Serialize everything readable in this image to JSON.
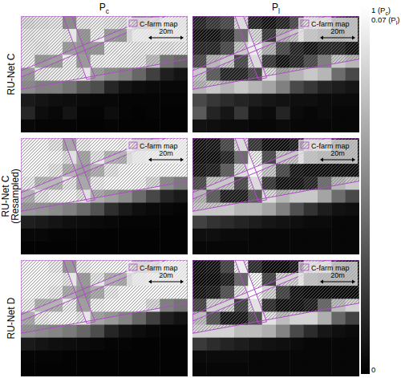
{
  "chart_data": {
    "type": "heatmap",
    "columns": [
      "Pc",
      "Pl"
    ],
    "color_ranges": [
      [
        0,
        1
      ],
      [
        0,
        0.07
      ]
    ],
    "colorbar_ticks": [
      [
        {
          "value": 1,
          "label": "1 (Pc)"
        },
        {
          "value": 0,
          "label": "0"
        }
      ],
      [
        {
          "value": 0.07,
          "label": "0.07 (Pl)"
        }
      ]
    ],
    "overlay_label": "C-farm map",
    "scale_bar_label": "20m",
    "rows": [
      {
        "label": [
          "RU-Net C"
        ],
        "panels": [
          [
            [
              0.85,
              0.88,
              0.9,
              0.55,
              0.9,
              0.92,
              0.9,
              0.88,
              0.6,
              0.65,
              0.9,
              0.88
            ],
            [
              0.9,
              0.92,
              0.93,
              0.9,
              0.6,
              0.93,
              0.62,
              0.6,
              0.92,
              0.9,
              0.93,
              0.9
            ],
            [
              0.92,
              0.9,
              0.93,
              0.62,
              0.58,
              0.6,
              0.93,
              0.94,
              0.92,
              0.93,
              0.9,
              0.92
            ],
            [
              0.93,
              0.6,
              0.62,
              0.92,
              0.6,
              0.93,
              0.94,
              0.92,
              0.9,
              0.75,
              0.45,
              0.4
            ],
            [
              0.6,
              0.9,
              0.92,
              0.93,
              0.9,
              0.62,
              0.55,
              0.5,
              0.4,
              0.25,
              0.12,
              0.08
            ],
            [
              0.55,
              0.5,
              0.5,
              0.45,
              0.35,
              0.3,
              0.15,
              0.08,
              0.05,
              0.04,
              0.03,
              0.03
            ],
            [
              0.1,
              0.08,
              0.06,
              0.05,
              0.04,
              0.03,
              0.03,
              0.02,
              0.02,
              0.02,
              0.02,
              0.02
            ],
            [
              0.15,
              0.05,
              0.03,
              0.08,
              0.02,
              0.02,
              0.05,
              0.02,
              0.01,
              0.02,
              0.01,
              0.01
            ],
            [
              0.03,
              0.02,
              0.02,
              0.02,
              0.01,
              0.01,
              0.02,
              0.01,
              0.01,
              0.01,
              0.01,
              0.01
            ]
          ],
          [
            [
              0.01,
              0.015,
              0.02,
              0.06,
              0.01,
              0.005,
              0.01,
              0.02,
              0.055,
              0.05,
              0.015,
              0.01
            ],
            [
              0.005,
              0.005,
              0.01,
              0.03,
              0.06,
              0.015,
              0.05,
              0.055,
              0.02,
              0.01,
              0.005,
              0.01
            ],
            [
              0.01,
              0.01,
              0.02,
              0.055,
              0.065,
              0.05,
              0.02,
              0.01,
              0.005,
              0.01,
              0.01,
              0.005
            ],
            [
              0.02,
              0.05,
              0.055,
              0.02,
              0.06,
              0.015,
              0.005,
              0.01,
              0.02,
              0.035,
              0.055,
              0.05
            ],
            [
              0.055,
              0.025,
              0.01,
              0.01,
              0.02,
              0.06,
              0.045,
              0.05,
              0.055,
              0.05,
              0.03,
              0.02
            ],
            [
              0.05,
              0.055,
              0.05,
              0.055,
              0.05,
              0.045,
              0.035,
              0.02,
              0.015,
              0.01,
              0.008,
              0.006
            ],
            [
              0.02,
              0.015,
              0.012,
              0.01,
              0.008,
              0.006,
              0.005,
              0.004,
              0.004,
              0.003,
              0.003,
              0.003
            ],
            [
              0.025,
              0.01,
              0.006,
              0.015,
              0.004,
              0.003,
              0.01,
              0.003,
              0.002,
              0.003,
              0.002,
              0.002
            ],
            [
              0.005,
              0.004,
              0.003,
              0.003,
              0.002,
              0.002,
              0.003,
              0.002,
              0.002,
              0.002,
              0.002,
              0.002
            ]
          ]
        ]
      },
      {
        "label": [
          "RU-Net C",
          "(Resampled)"
        ],
        "panels": [
          [
            [
              0.95,
              0.96,
              0.9,
              0.65,
              0.92,
              0.97,
              0.97,
              0.95,
              0.7,
              0.72,
              0.95,
              0.97
            ],
            [
              0.97,
              0.97,
              0.96,
              0.88,
              0.66,
              0.9,
              0.72,
              0.7,
              0.9,
              0.96,
              0.97,
              0.97
            ],
            [
              0.97,
              0.96,
              0.9,
              0.7,
              0.62,
              0.7,
              0.9,
              0.96,
              0.97,
              0.97,
              0.97,
              0.97
            ],
            [
              0.92,
              0.72,
              0.72,
              0.9,
              0.66,
              0.93,
              0.97,
              0.97,
              0.95,
              0.85,
              0.55,
              0.48
            ],
            [
              0.7,
              0.9,
              0.95,
              0.96,
              0.88,
              0.68,
              0.62,
              0.55,
              0.42,
              0.28,
              0.15,
              0.1
            ],
            [
              0.6,
              0.58,
              0.55,
              0.5,
              0.42,
              0.32,
              0.18,
              0.1,
              0.06,
              0.04,
              0.03,
              0.02
            ],
            [
              0.12,
              0.1,
              0.08,
              0.06,
              0.05,
              0.04,
              0.03,
              0.02,
              0.02,
              0.02,
              0.01,
              0.01
            ],
            [
              0.03,
              0.03,
              0.02,
              0.02,
              0.02,
              0.01,
              0.01,
              0.01,
              0.01,
              0.01,
              0.01,
              0.01
            ],
            [
              0.01,
              0.01,
              0.01,
              0.01,
              0.01,
              0.01,
              0.01,
              0.01,
              0.01,
              0.01,
              0.01,
              0.01
            ]
          ],
          [
            [
              0.005,
              0.006,
              0.02,
              0.06,
              0.015,
              0.004,
              0.004,
              0.008,
              0.05,
              0.05,
              0.008,
              0.004
            ],
            [
              0.004,
              0.004,
              0.01,
              0.03,
              0.065,
              0.02,
              0.055,
              0.055,
              0.015,
              0.006,
              0.004,
              0.004
            ],
            [
              0.006,
              0.008,
              0.025,
              0.06,
              0.068,
              0.055,
              0.02,
              0.006,
              0.004,
              0.004,
              0.004,
              0.004
            ],
            [
              0.02,
              0.055,
              0.055,
              0.02,
              0.06,
              0.015,
              0.005,
              0.005,
              0.01,
              0.03,
              0.05,
              0.055
            ],
            [
              0.05,
              0.025,
              0.008,
              0.008,
              0.025,
              0.06,
              0.05,
              0.055,
              0.055,
              0.045,
              0.03,
              0.02
            ],
            [
              0.055,
              0.055,
              0.055,
              0.05,
              0.05,
              0.045,
              0.035,
              0.022,
              0.014,
              0.008,
              0.005,
              0.004
            ],
            [
              0.018,
              0.014,
              0.012,
              0.01,
              0.008,
              0.006,
              0.005,
              0.004,
              0.003,
              0.003,
              0.002,
              0.002
            ],
            [
              0.004,
              0.004,
              0.003,
              0.003,
              0.002,
              0.002,
              0.002,
              0.002,
              0.002,
              0.002,
              0.002,
              0.002
            ],
            [
              0.002,
              0.002,
              0.002,
              0.002,
              0.002,
              0.002,
              0.002,
              0.002,
              0.002,
              0.002,
              0.002,
              0.002
            ]
          ]
        ]
      },
      {
        "label": [
          "RU-Net D"
        ],
        "panels": [
          [
            [
              0.96,
              0.97,
              0.92,
              0.6,
              0.93,
              0.97,
              0.97,
              0.96,
              0.68,
              0.7,
              0.96,
              0.97
            ],
            [
              0.97,
              0.97,
              0.96,
              0.9,
              0.62,
              0.9,
              0.7,
              0.68,
              0.92,
              0.97,
              0.97,
              0.97
            ],
            [
              0.97,
              0.96,
              0.92,
              0.68,
              0.58,
              0.68,
              0.92,
              0.97,
              0.97,
              0.97,
              0.97,
              0.97
            ],
            [
              0.93,
              0.7,
              0.7,
              0.92,
              0.62,
              0.94,
              0.97,
              0.97,
              0.96,
              0.86,
              0.5,
              0.45
            ],
            [
              0.68,
              0.92,
              0.96,
              0.96,
              0.9,
              0.65,
              0.6,
              0.52,
              0.4,
              0.25,
              0.12,
              0.08
            ],
            [
              0.58,
              0.55,
              0.52,
              0.48,
              0.4,
              0.3,
              0.15,
              0.08,
              0.05,
              0.03,
              0.02,
              0.02
            ],
            [
              0.1,
              0.08,
              0.06,
              0.05,
              0.04,
              0.03,
              0.02,
              0.02,
              0.01,
              0.01,
              0.01,
              0.01
            ],
            [
              0.02,
              0.02,
              0.02,
              0.01,
              0.01,
              0.01,
              0.01,
              0.01,
              0.01,
              0.01,
              0.01,
              0.01
            ],
            [
              0.01,
              0.01,
              0.01,
              0.01,
              0.01,
              0.01,
              0.01,
              0.01,
              0.01,
              0.01,
              0.01,
              0.01
            ]
          ],
          [
            [
              0.004,
              0.005,
              0.018,
              0.065,
              0.012,
              0.003,
              0.003,
              0.007,
              0.055,
              0.052,
              0.007,
              0.003
            ],
            [
              0.003,
              0.003,
              0.008,
              0.028,
              0.068,
              0.018,
              0.058,
              0.058,
              0.012,
              0.005,
              0.003,
              0.003
            ],
            [
              0.005,
              0.007,
              0.022,
              0.062,
              0.07,
              0.058,
              0.018,
              0.005,
              0.003,
              0.003,
              0.003,
              0.003
            ],
            [
              0.018,
              0.058,
              0.058,
              0.018,
              0.062,
              0.012,
              0.004,
              0.004,
              0.008,
              0.028,
              0.052,
              0.058
            ],
            [
              0.052,
              0.022,
              0.006,
              0.006,
              0.022,
              0.062,
              0.052,
              0.058,
              0.058,
              0.048,
              0.028,
              0.018
            ],
            [
              0.058,
              0.058,
              0.058,
              0.052,
              0.052,
              0.048,
              0.036,
              0.02,
              0.012,
              0.006,
              0.004,
              0.003
            ],
            [
              0.016,
              0.012,
              0.01,
              0.008,
              0.006,
              0.005,
              0.004,
              0.003,
              0.002,
              0.002,
              0.002,
              0.002
            ],
            [
              0.003,
              0.003,
              0.003,
              0.003,
              0.002,
              0.002,
              0.002,
              0.002,
              0.002,
              0.002,
              0.002,
              0.002
            ],
            [
              0.002,
              0.002,
              0.002,
              0.002,
              0.002,
              0.002,
              0.002,
              0.002,
              0.002,
              0.002,
              0.002,
              0.002
            ]
          ]
        ]
      }
    ]
  }
}
